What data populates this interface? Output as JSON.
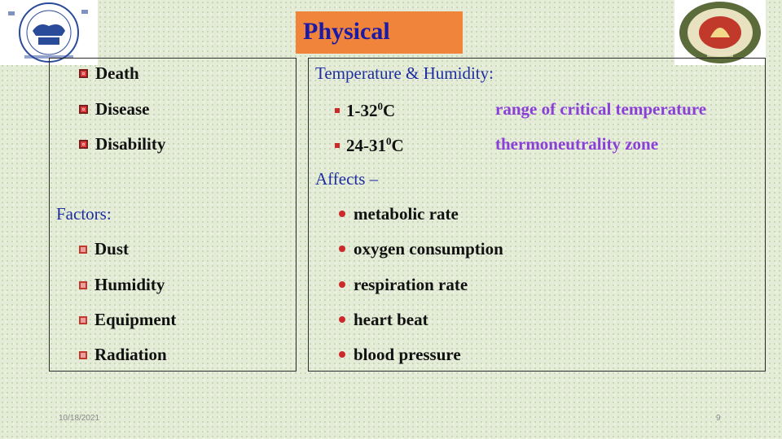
{
  "title": "Physical",
  "left_list": [
    "Death",
    "Disease",
    "Disability"
  ],
  "factors": {
    "heading": "Factors",
    "items": [
      "Dust",
      "Humidity",
      "Equipment",
      "Radiation"
    ]
  },
  "temperature": {
    "heading": "Temperature & Humidity",
    "ranges": [
      {
        "value": "1-32",
        "sup": "0",
        "unit": "C",
        "label": "range of critical temperature"
      },
      {
        "value": "24-31",
        "sup": "0",
        "unit": "C",
        "label": "thermoneutrality zone"
      }
    ]
  },
  "affects": {
    "heading": "Affects –",
    "items": [
      "metabolic rate",
      "oxygen consumption",
      "respiration rate",
      "heart beat",
      "blood pressure"
    ]
  },
  "footer": {
    "date": "10/18/2021",
    "page": "9"
  },
  "colors": {
    "title_bg": "#f0843a",
    "title_text": "#1a1aa8",
    "heading_blue": "#1e2da0",
    "accent_purple": "#8a3fd6",
    "bullet_red": "#cc2a2a"
  }
}
